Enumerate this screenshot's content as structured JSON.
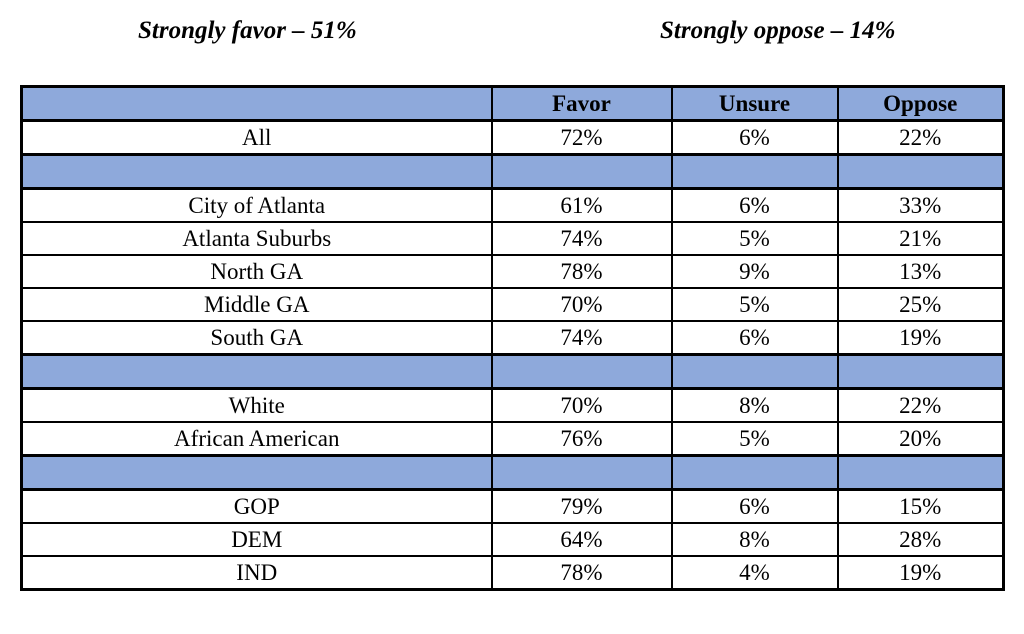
{
  "annotations": {
    "favor_note": "Strongly favor – 51%",
    "oppose_note": "Strongly oppose – 14%"
  },
  "table": {
    "columns": [
      "",
      "Favor",
      "Unsure",
      "Oppose"
    ],
    "rows": [
      {
        "type": "data",
        "label": "All",
        "values": [
          "72%",
          "6%",
          "22%"
        ]
      },
      {
        "type": "separator",
        "label": "",
        "values": [
          "",
          "",
          ""
        ]
      },
      {
        "type": "data",
        "label": "City of Atlanta",
        "values": [
          "61%",
          "6%",
          "33%"
        ]
      },
      {
        "type": "data",
        "label": "Atlanta Suburbs",
        "values": [
          "74%",
          "5%",
          "21%"
        ]
      },
      {
        "type": "data",
        "label": "North GA",
        "values": [
          "78%",
          "9%",
          "13%"
        ]
      },
      {
        "type": "data",
        "label": "Middle GA",
        "values": [
          "70%",
          "5%",
          "25%"
        ]
      },
      {
        "type": "data",
        "label": "South GA",
        "values": [
          "74%",
          "6%",
          "19%"
        ]
      },
      {
        "type": "separator",
        "label": "",
        "values": [
          "",
          "",
          ""
        ]
      },
      {
        "type": "data",
        "label": "White",
        "values": [
          "70%",
          "8%",
          "22%"
        ]
      },
      {
        "type": "data",
        "label": "African American",
        "values": [
          "76%",
          "5%",
          "20%"
        ]
      },
      {
        "type": "separator",
        "label": "",
        "values": [
          "",
          "",
          ""
        ]
      },
      {
        "type": "data",
        "label": "GOP",
        "values": [
          "79%",
          "6%",
          "15%"
        ]
      },
      {
        "type": "data",
        "label": "DEM",
        "values": [
          "64%",
          "8%",
          "28%"
        ]
      },
      {
        "type": "data",
        "label": "IND",
        "values": [
          "78%",
          "4%",
          "19%"
        ]
      }
    ]
  },
  "colors": {
    "row_accent": "#8EA9DB",
    "border": "#000000",
    "text": "#000000",
    "background": "#FFFFFF"
  }
}
